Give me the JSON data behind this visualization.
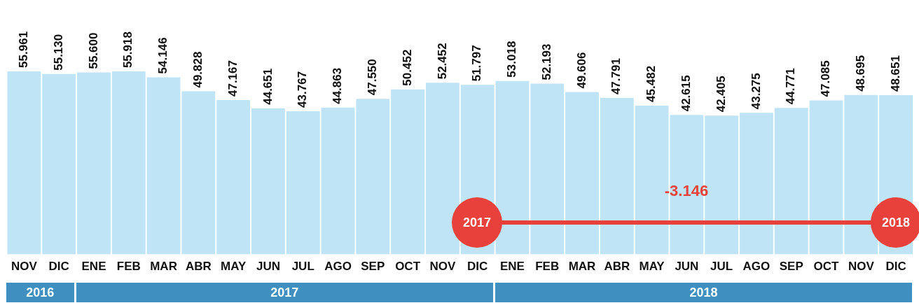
{
  "chart_data": {
    "type": "bar",
    "categories": [
      "NOV",
      "DIC",
      "ENE",
      "FEB",
      "MAR",
      "ABR",
      "MAY",
      "JUN",
      "JUL",
      "AGO",
      "SEP",
      "OCT",
      "NOV",
      "DIC",
      "ENE",
      "FEB",
      "MAR",
      "ABR",
      "MAY",
      "JUN",
      "JUL",
      "AGO",
      "SEP",
      "OCT",
      "NOV",
      "DIC"
    ],
    "values": [
      55961,
      55130,
      55600,
      55918,
      54146,
      49828,
      47167,
      44651,
      43767,
      44863,
      47550,
      50452,
      52452,
      51797,
      53018,
      52193,
      49606,
      47791,
      45482,
      42615,
      42405,
      43275,
      44771,
      47085,
      48695,
      48651
    ],
    "value_labels": [
      "55.961",
      "55.130",
      "55.600",
      "55.918",
      "54.146",
      "49.828",
      "47.167",
      "44.651",
      "43.767",
      "44.863",
      "47.550",
      "50.452",
      "52.452",
      "51.797",
      "53.018",
      "52.193",
      "49.606",
      "47.791",
      "45.482",
      "42.615",
      "42.405",
      "43.275",
      "44.771",
      "47.085",
      "48.695",
      "48.651"
    ],
    "color": "#bfe4f6",
    "grid": false,
    "legend": false,
    "annotations": [
      "2016",
      "2017",
      "2018",
      "2017",
      "2018",
      "-3.146"
    ]
  }
}
